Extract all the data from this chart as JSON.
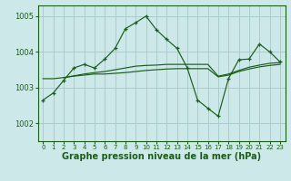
{
  "bg_color": "#cce8e8",
  "grid_color": "#aacccc",
  "line_color": "#1a5e1a",
  "xlabel": "Graphe pression niveau de la mer (hPa)",
  "xlabel_fontsize": 7.0,
  "ylim": [
    1001.5,
    1005.3
  ],
  "xlim": [
    -0.5,
    23.5
  ],
  "yticks": [
    1002,
    1003,
    1004,
    1005
  ],
  "xticks": [
    0,
    1,
    2,
    3,
    4,
    5,
    6,
    7,
    8,
    9,
    10,
    11,
    12,
    13,
    14,
    15,
    16,
    17,
    18,
    19,
    20,
    21,
    22,
    23
  ],
  "series1_x": [
    0,
    1,
    2,
    3,
    4,
    5,
    6,
    7,
    8,
    9,
    10,
    11,
    12,
    13,
    14,
    15,
    16,
    17,
    18,
    19,
    20,
    21,
    22,
    23
  ],
  "series1_y": [
    1002.65,
    1002.85,
    1003.2,
    1003.55,
    1003.65,
    1003.55,
    1003.8,
    1004.1,
    1004.65,
    1004.82,
    1005.0,
    1004.62,
    1004.35,
    1004.1,
    1003.55,
    1002.65,
    1002.42,
    1002.2,
    1003.25,
    1003.78,
    1003.8,
    1004.22,
    1004.0,
    1003.72
  ],
  "series2_x": [
    0,
    1,
    2,
    3,
    4,
    5,
    6,
    7,
    8,
    9,
    10,
    11,
    12,
    13,
    14,
    15,
    16,
    17,
    18,
    19,
    20,
    21,
    22,
    23
  ],
  "series2_y": [
    1003.25,
    1003.25,
    1003.28,
    1003.32,
    1003.35,
    1003.38,
    1003.38,
    1003.4,
    1003.42,
    1003.45,
    1003.48,
    1003.5,
    1003.52,
    1003.53,
    1003.53,
    1003.53,
    1003.53,
    1003.3,
    1003.35,
    1003.45,
    1003.52,
    1003.58,
    1003.62,
    1003.65
  ],
  "series3_x": [
    2,
    3,
    4,
    5,
    6,
    7,
    8,
    9,
    10,
    11,
    12,
    13,
    14,
    15,
    16,
    17,
    18,
    19,
    20,
    21,
    22,
    23
  ],
  "series3_y": [
    1003.28,
    1003.33,
    1003.38,
    1003.42,
    1003.45,
    1003.5,
    1003.55,
    1003.6,
    1003.62,
    1003.63,
    1003.65,
    1003.65,
    1003.65,
    1003.65,
    1003.65,
    1003.32,
    1003.38,
    1003.48,
    1003.57,
    1003.63,
    1003.68,
    1003.7
  ]
}
